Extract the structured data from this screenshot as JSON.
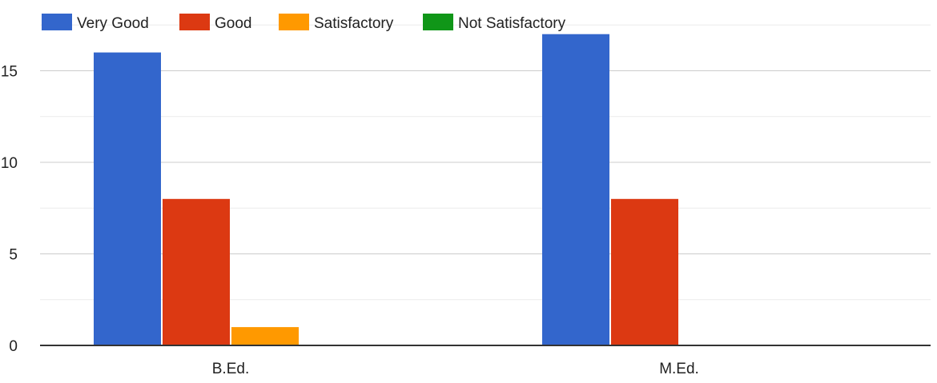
{
  "chart_data": {
    "type": "bar",
    "categories": [
      "B.Ed.",
      "M.Ed."
    ],
    "series": [
      {
        "name": "Very Good",
        "color": "#3366cc",
        "values": [
          16,
          17
        ]
      },
      {
        "name": "Good",
        "color": "#dc3912",
        "values": [
          8,
          8
        ]
      },
      {
        "name": "Satisfactory",
        "color": "#ff9900",
        "values": [
          1,
          0
        ]
      },
      {
        "name": "Not Satisfactory",
        "color": "#109618",
        "values": [
          0,
          0
        ]
      }
    ],
    "yticks": [
      0,
      5,
      10,
      15
    ],
    "ylim": [
      0,
      17.5
    ],
    "minor_gridlines": true,
    "legend_position": "top-left"
  }
}
